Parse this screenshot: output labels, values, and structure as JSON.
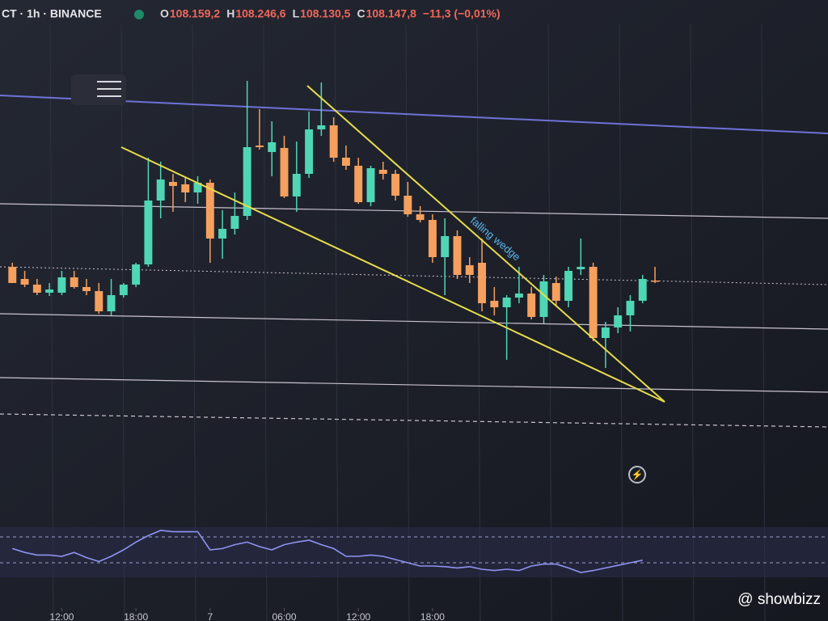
{
  "header": {
    "symbol": "CT · 1h · BINANCE",
    "ohlc": [
      {
        "key": "O",
        "value": "108.159,2"
      },
      {
        "key": "H",
        "value": "108.246,6"
      },
      {
        "key": "L",
        "value": "108.130,5"
      },
      {
        "key": "C",
        "value": "108.147,8"
      }
    ],
    "change": "−11,3 (−0,01%)"
  },
  "annotation": "falling wedge",
  "watermark": "@ showbizz",
  "chart_data": [
    {
      "type": "candlestick",
      "up_color": "#4fd6b4",
      "down_color": "#f5a05e",
      "xlim": [
        -1,
        66
      ],
      "ylim": [
        108035,
        108405
      ],
      "xticks": [
        {
          "value": 4,
          "label": "12:00"
        },
        {
          "value": 10,
          "label": "18:00"
        },
        {
          "value": 16,
          "label": "7"
        },
        {
          "value": 22,
          "label": "06:00"
        },
        {
          "value": 28,
          "label": "12:00"
        },
        {
          "value": 34,
          "label": "18:00"
        }
      ],
      "open": [
        108165,
        108150,
        108143,
        108133,
        108133,
        108152,
        108140,
        108135,
        108110,
        108130,
        108143,
        108168,
        108247,
        108270,
        108267,
        108257,
        108269,
        108200,
        108212,
        108228,
        108315,
        108307,
        108312,
        108252,
        108280,
        108335,
        108340,
        108300,
        108290,
        108245,
        108285,
        108280,
        108253,
        108230,
        108223,
        108177,
        108203,
        108167,
        108170,
        108123,
        108115,
        108127,
        108132,
        108103,
        108145,
        108123,
        108162,
        108165,
        108077,
        108090,
        108105,
        108123,
        108148
      ],
      "high": [
        108170,
        108160,
        108150,
        108145,
        108160,
        108160,
        108150,
        108145,
        108150,
        108145,
        108170,
        108300,
        108295,
        108280,
        108275,
        108277,
        108273,
        108235,
        108257,
        108395,
        108360,
        108345,
        108327,
        108320,
        108357,
        108393,
        108350,
        108315,
        108300,
        108290,
        108295,
        108285,
        108270,
        108240,
        108230,
        108225,
        108210,
        108177,
        108200,
        108140,
        108130,
        108165,
        108140,
        108155,
        108153,
        108165,
        108200,
        108170,
        108097,
        108115,
        108130,
        108155,
        108165
      ],
      "low": [
        108145,
        108140,
        108130,
        108129,
        108130,
        108138,
        108130,
        108107,
        108105,
        108127,
        108140,
        108165,
        108225,
        108233,
        108245,
        108243,
        108170,
        108175,
        108205,
        108223,
        108310,
        108277,
        108250,
        108233,
        108275,
        108327,
        108295,
        108285,
        108243,
        108240,
        108273,
        108247,
        108227,
        108220,
        108170,
        108130,
        108150,
        108145,
        108110,
        108105,
        108050,
        108120,
        108100,
        108095,
        108117,
        108115,
        108155,
        108073,
        108040,
        108083,
        108085,
        108120,
        108145
      ],
      "close": [
        108145,
        108143,
        108133,
        108137,
        108152,
        108140,
        108135,
        108110,
        108130,
        108143,
        108168,
        108247,
        108273,
        108265,
        108257,
        108269,
        108200,
        108212,
        108228,
        108313,
        108313,
        108319,
        108252,
        108280,
        108335,
        108340,
        108300,
        108290,
        108245,
        108287,
        108280,
        108253,
        108230,
        108223,
        108177,
        108203,
        108155,
        108155,
        108120,
        108115,
        108127,
        108132,
        108103,
        108147,
        108123,
        108160,
        108165,
        108077,
        108090,
        108105,
        108123,
        108150,
        108147
      ]
    },
    {
      "type": "line",
      "color": "#8f93f0",
      "xlim": [
        -1,
        66
      ],
      "ylim": [
        0,
        100
      ],
      "yticks": [
        30,
        70
      ],
      "values": [
        52,
        46,
        42,
        42,
        40,
        46,
        38,
        32,
        40,
        50,
        62,
        72,
        80,
        78,
        78,
        78,
        50,
        52,
        58,
        62,
        55,
        50,
        58,
        62,
        65,
        58,
        52,
        40,
        40,
        42,
        40,
        35,
        30,
        25,
        25,
        24,
        22,
        24,
        20,
        18,
        20,
        18,
        25,
        28,
        28,
        22,
        15,
        18,
        22,
        26,
        30,
        34,
        null
      ]
    }
  ]
}
